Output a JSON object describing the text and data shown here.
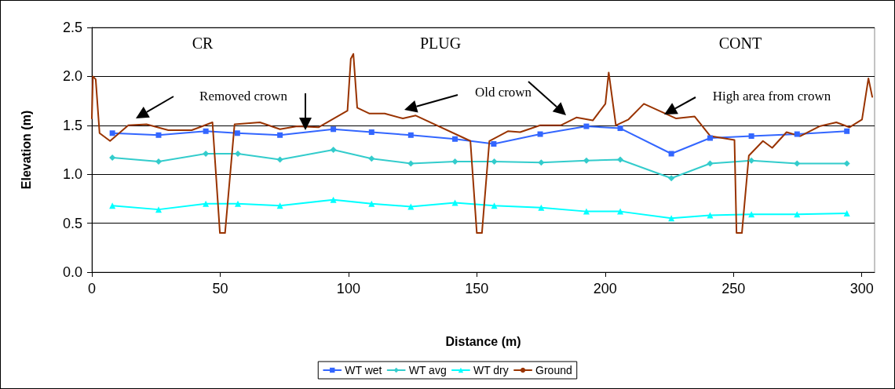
{
  "chart_data": {
    "type": "line",
    "xlabel": "Distance (m)",
    "ylabel": "Elevation (m)",
    "xlim": [
      0,
      305
    ],
    "xticks": [
      0,
      50,
      100,
      150,
      200,
      250,
      300
    ],
    "ylim": [
      0,
      2.5
    ],
    "yticks": [
      {
        "value": 0,
        "label": "0.0"
      },
      {
        "value": 0.5,
        "label": "0.5"
      },
      {
        "value": 1,
        "label": "1.0"
      },
      {
        "value": 1.5,
        "label": "1.5"
      },
      {
        "value": 2,
        "label": "2.0"
      },
      {
        "value": 2.5,
        "label": "2.5"
      }
    ],
    "grid": "y",
    "legend": "bottom",
    "line_style": "solid",
    "series": [
      {
        "name": "WT wet",
        "color": "#3366ff",
        "marker": "square",
        "x": [
          8.0,
          26.0,
          44.4,
          56.7,
          73.3,
          94.1,
          109.0,
          124.3,
          141.5,
          156.6,
          174.7,
          192.7,
          205.9,
          225.8,
          240.9,
          257.0,
          274.8,
          294.2
        ],
        "values": [
          1.42,
          1.4,
          1.44,
          1.42,
          1.4,
          1.46,
          1.43,
          1.4,
          1.36,
          1.31,
          1.41,
          1.49,
          1.47,
          1.21,
          1.37,
          1.39,
          1.41,
          1.44
        ]
      },
      {
        "name": "WT avg",
        "color": "#33cccc",
        "marker": "diamond",
        "x": [
          8.0,
          26.0,
          44.4,
          56.9,
          73.3,
          94.1,
          109.0,
          124.3,
          141.5,
          156.8,
          175.1,
          192.7,
          205.9,
          225.8,
          240.9,
          257.0,
          274.8,
          294.2
        ],
        "values": [
          1.17,
          1.13,
          1.21,
          1.21,
          1.15,
          1.25,
          1.16,
          1.11,
          1.13,
          1.13,
          1.12,
          1.14,
          1.15,
          0.96,
          1.11,
          1.14,
          1.11,
          1.11
        ]
      },
      {
        "name": "WT dry",
        "color": "#00ffff",
        "marker": "triangle",
        "x": [
          8.0,
          26.0,
          44.4,
          56.9,
          73.3,
          94.1,
          109.0,
          124.3,
          141.5,
          156.8,
          175.1,
          192.7,
          205.9,
          225.8,
          240.9,
          257.0,
          274.8,
          294.2
        ],
        "values": [
          0.68,
          0.64,
          0.7,
          0.7,
          0.68,
          0.74,
          0.7,
          0.67,
          0.71,
          0.68,
          0.66,
          0.62,
          0.62,
          0.55,
          0.58,
          0.59,
          0.59,
          0.6
        ]
      },
      {
        "name": "Ground",
        "color": "#993300",
        "marker": "none",
        "x": [
          0,
          0.4,
          1.5,
          3.0,
          7.1,
          14.2,
          21.3,
          29.8,
          38.9,
          47.0,
          49.9,
          51.9,
          55.6,
          65.5,
          73.3,
          80.0,
          88.3,
          99.6,
          100.9,
          101.9,
          103.4,
          108.2,
          114.1,
          121.2,
          126.2,
          147.5,
          150.0,
          152.0,
          154.9,
          162.1,
          166.9,
          174.7,
          182.7,
          188.8,
          195.2,
          200.1,
          201.4,
          204.2,
          209.1,
          215.1,
          227.7,
          234.9,
          241.0,
          250.4,
          251.2,
          253.3,
          256.0,
          261.5,
          265.1,
          270.7,
          276.0,
          283.5,
          290.1,
          295.2,
          300.1,
          302.6,
          304.1
        ],
        "values": [
          1.57,
          2.0,
          1.97,
          1.42,
          1.34,
          1.5,
          1.51,
          1.45,
          1.45,
          1.53,
          0.4,
          0.4,
          1.51,
          1.53,
          1.46,
          1.49,
          1.48,
          1.65,
          2.18,
          2.23,
          1.68,
          1.62,
          1.62,
          1.57,
          1.6,
          1.34,
          0.4,
          0.4,
          1.34,
          1.44,
          1.43,
          1.5,
          1.5,
          1.58,
          1.55,
          1.72,
          2.04,
          1.5,
          1.56,
          1.72,
          1.57,
          1.59,
          1.39,
          1.35,
          0.4,
          0.4,
          1.19,
          1.34,
          1.27,
          1.43,
          1.39,
          1.49,
          1.53,
          1.48,
          1.56,
          1.98,
          1.79
        ]
      }
    ],
    "annotations": [
      "CR",
      "PLUG",
      "CONT",
      "Removed crown",
      "Old crown",
      "High area from crown"
    ]
  }
}
